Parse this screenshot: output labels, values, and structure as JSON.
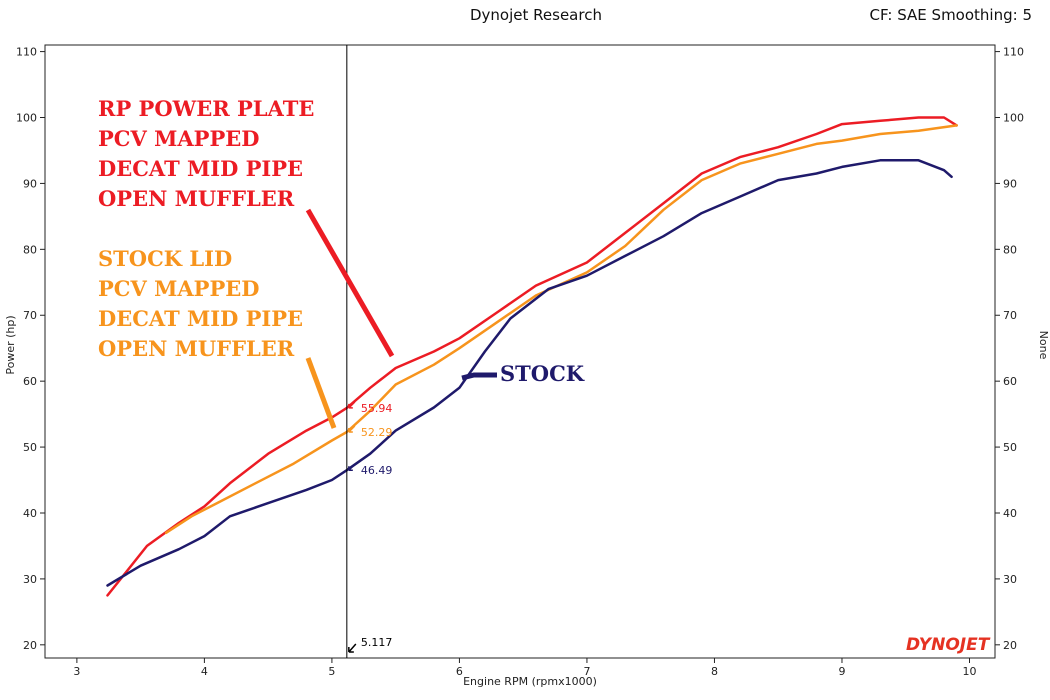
{
  "header": {
    "title": "Dynojet Research",
    "cf_info": "CF: SAE Smoothing: 5"
  },
  "brand": {
    "logo_text": "DYNOJET",
    "logo_color": "#e53222"
  },
  "chart_data": {
    "type": "line",
    "title": "Dynojet Research",
    "xlabel": "Engine RPM (rpmx1000)",
    "ylabel": "Power (hp)",
    "y2label": "None",
    "xlim": [
      2.75,
      10.2
    ],
    "ylim": [
      18,
      111
    ],
    "xticks": [
      "3",
      "4",
      "5",
      "6",
      "7",
      "8",
      "9",
      "10"
    ],
    "yticks": [
      "20",
      "30",
      "40",
      "50",
      "60",
      "70",
      "80",
      "90",
      "100",
      "110"
    ],
    "cursor": {
      "rpm": 5.117,
      "label": "5.117"
    },
    "series": [
      {
        "name": "RP Power Plate",
        "color": "#ec1c24",
        "cursor_value": "55.94",
        "x": [
          3.24,
          3.55,
          3.8,
          4.0,
          4.2,
          4.5,
          4.8,
          5.0,
          5.117,
          5.3,
          5.5,
          5.8,
          6.0,
          6.3,
          6.6,
          7.0,
          7.3,
          7.6,
          7.9,
          8.2,
          8.5,
          8.8,
          9.0,
          9.3,
          9.6,
          9.8,
          9.9
        ],
        "y": [
          27.5,
          35.0,
          38.5,
          41.0,
          44.5,
          49.0,
          52.5,
          54.5,
          55.94,
          59.0,
          62.0,
          64.5,
          66.5,
          70.5,
          74.5,
          78.0,
          82.5,
          87.0,
          91.5,
          94.0,
          95.5,
          97.5,
          99.0,
          99.5,
          100.0,
          100.0,
          98.8
        ]
      },
      {
        "name": "Stock Lid",
        "color": "#f7941d",
        "cursor_value": "52.29",
        "x": [
          3.7,
          3.9,
          4.1,
          4.4,
          4.7,
          5.0,
          5.117,
          5.3,
          5.5,
          5.8,
          6.0,
          6.3,
          6.6,
          7.0,
          7.3,
          7.6,
          7.9,
          8.2,
          8.5,
          8.8,
          9.0,
          9.3,
          9.6,
          9.9
        ],
        "y": [
          37.0,
          39.5,
          41.5,
          44.5,
          47.5,
          51.0,
          52.29,
          55.5,
          59.5,
          62.5,
          65.0,
          69.0,
          73.0,
          76.5,
          80.5,
          86.0,
          90.5,
          93.0,
          94.5,
          96.0,
          96.5,
          97.5,
          98.0,
          98.8
        ]
      },
      {
        "name": "Stock",
        "color": "#1f1a6b",
        "cursor_value": "46.49",
        "x": [
          3.24,
          3.5,
          3.8,
          4.0,
          4.2,
          4.5,
          4.8,
          5.0,
          5.117,
          5.3,
          5.5,
          5.8,
          6.0,
          6.2,
          6.4,
          6.7,
          7.0,
          7.3,
          7.6,
          7.9,
          8.2,
          8.5,
          8.8,
          9.0,
          9.3,
          9.6,
          9.8,
          9.86
        ],
        "y": [
          29.0,
          32.0,
          34.5,
          36.5,
          39.5,
          41.5,
          43.5,
          45.0,
          46.49,
          49.0,
          52.5,
          56.0,
          59.0,
          64.5,
          69.5,
          74.0,
          76.0,
          79.0,
          82.0,
          85.5,
          88.0,
          90.5,
          91.5,
          92.5,
          93.5,
          93.5,
          92.0,
          91.0
        ]
      }
    ],
    "annotations": [
      {
        "lines": [
          "RP POWER PLATE",
          "PCV MAPPED",
          "DECAT MID PIPE",
          "OPEN MUFFLER"
        ],
        "color": "#ec1c24"
      },
      {
        "lines": [
          "STOCK LID",
          "PCV MAPPED",
          "DECAT MID PIPE",
          "OPEN MUFFLER"
        ],
        "color": "#f7941d"
      },
      {
        "lines": [
          "STOCK"
        ],
        "color": "#1f1a6b"
      }
    ]
  }
}
